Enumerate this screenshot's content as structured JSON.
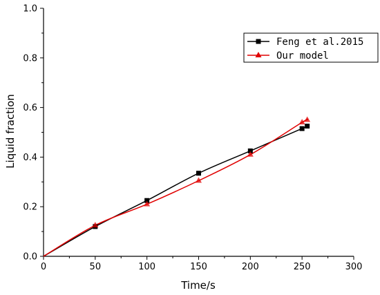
{
  "chart_data": {
    "type": "line",
    "xlabel": "Time/s",
    "ylabel": "Liquid fraction",
    "xlim": [
      0,
      300
    ],
    "ylim": [
      0,
      1.0
    ],
    "x_ticks": [
      "0",
      "50",
      "100",
      "150",
      "200",
      "250",
      "300"
    ],
    "y_ticks": [
      "0.0",
      "0.2",
      "0.4",
      "0.6",
      "0.8",
      "1.0"
    ],
    "grid": false,
    "legend_position": "top-right",
    "series": [
      {
        "name": "Feng et al.2015",
        "color": "#000000",
        "marker": "square",
        "x": [
          0,
          50,
          100,
          150,
          200,
          250,
          255
        ],
        "y": [
          0.0,
          0.12,
          0.225,
          0.335,
          0.425,
          0.515,
          0.525
        ]
      },
      {
        "name": "Our model",
        "color": "#e00000",
        "marker": "triangle",
        "x": [
          0,
          50,
          100,
          150,
          200,
          250,
          255
        ],
        "y": [
          0.0,
          0.125,
          0.21,
          0.305,
          0.41,
          0.54,
          0.55
        ]
      }
    ]
  }
}
